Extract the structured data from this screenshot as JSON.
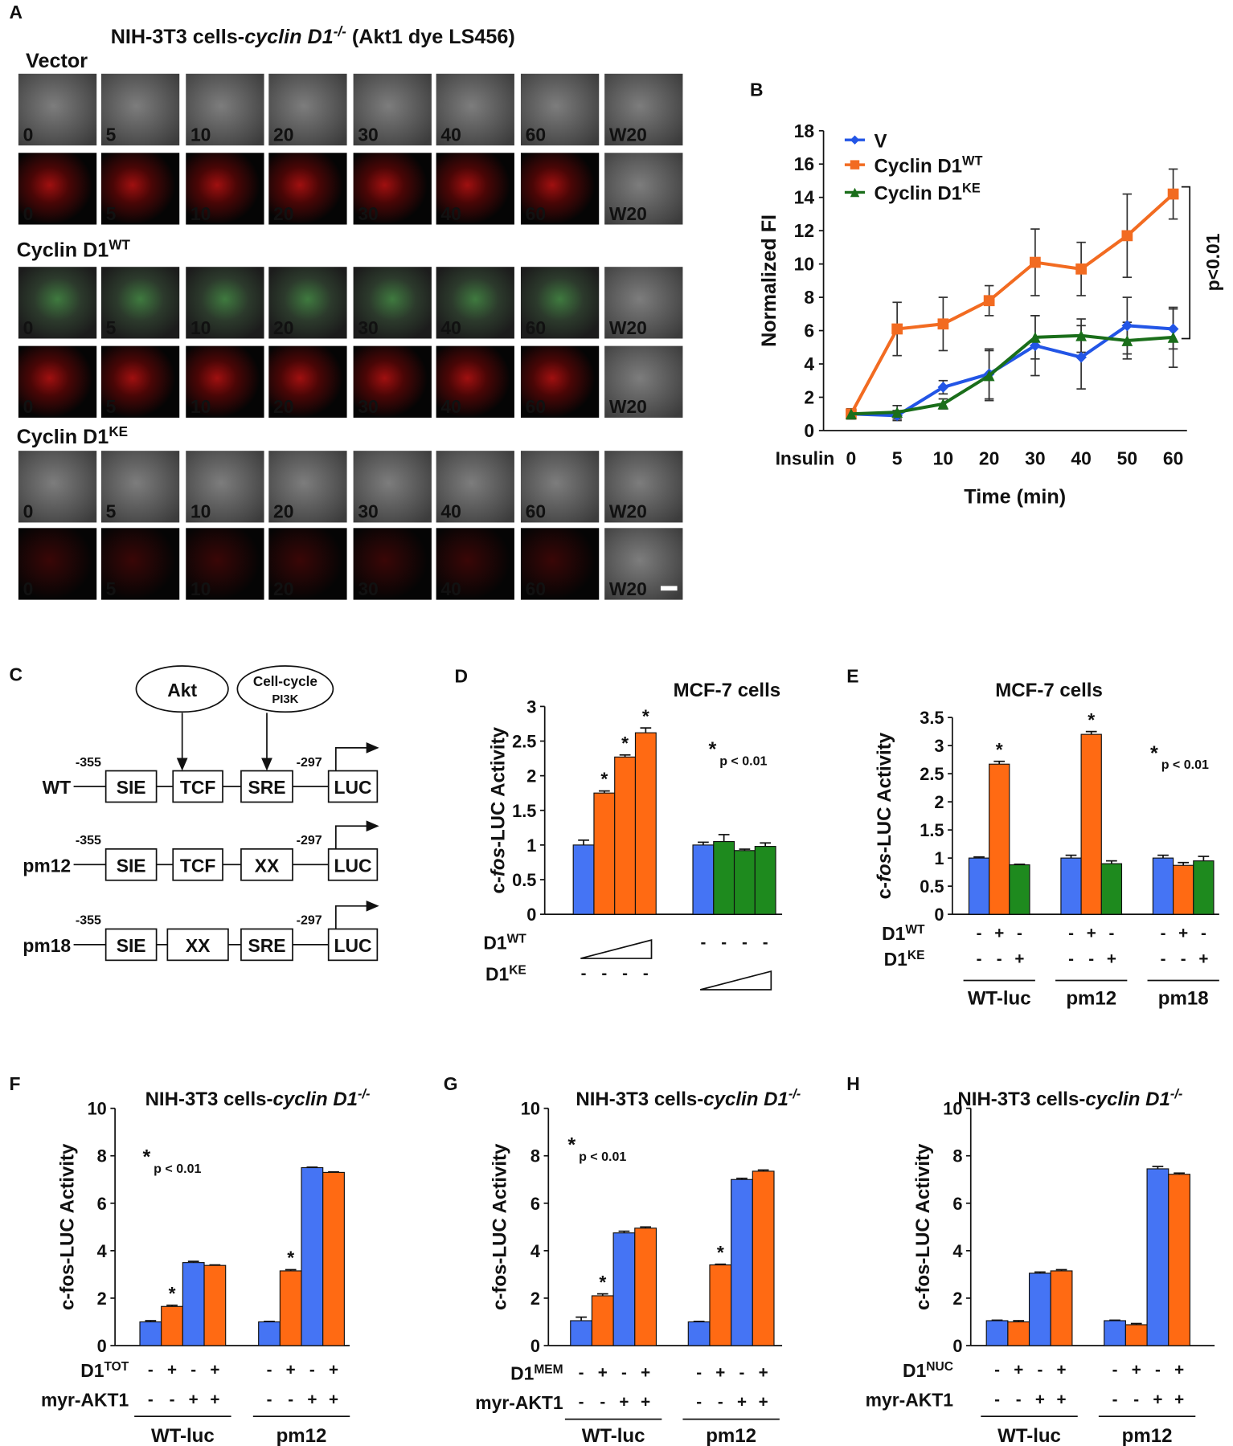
{
  "panel_a": {
    "letter": "A",
    "title_parts": [
      "NIH-3T3 cells-",
      "cyclin D1",
      "-/-",
      " (Akt1 dye LS456)"
    ],
    "groups": [
      {
        "name": "Vector"
      },
      {
        "name": "Cyclin D1",
        "name_sup": "WT"
      },
      {
        "name": "Cyclin D1",
        "name_sup": "KE"
      }
    ],
    "frames": [
      "0",
      "5",
      "10",
      "20",
      "30",
      "40",
      "60",
      "W20"
    ]
  },
  "panel_c": {
    "letter": "C",
    "regulators": [
      [
        "Akt"
      ],
      [
        "Cell-cycle",
        "PI3K"
      ]
    ],
    "constructs": [
      {
        "label": "WT",
        "start": "-355",
        "end": "-297",
        "elements": [
          "SIE",
          "TCF",
          "SRE",
          "LUC"
        ]
      },
      {
        "label": "pm12",
        "start": "-355",
        "end": "-297",
        "elements": [
          "SIE",
          "TCF",
          "XX",
          "LUC"
        ]
      },
      {
        "label": "pm18",
        "start": "-355",
        "end": "-297",
        "elements": [
          "SIE",
          "XX",
          "SRE",
          "LUC"
        ]
      }
    ]
  },
  "chart_data": [
    {
      "type": "line",
      "letter": "B",
      "ylabel": "Normalized FI",
      "xlabel": "Time (min)",
      "x_prefix": "Insulin",
      "categories": [
        "0",
        "5",
        "10",
        "20",
        "30",
        "40",
        "50",
        "60"
      ],
      "ylim": [
        0,
        18
      ],
      "yticks": [
        0,
        2,
        4,
        6,
        8,
        10,
        12,
        14,
        16,
        18
      ],
      "annotation": "p<0.01",
      "series": [
        {
          "name": "V",
          "color": "#2255e6",
          "marker": "diamond",
          "values": [
            1.0,
            0.9,
            2.6,
            3.4,
            5.1,
            4.4,
            6.3,
            6.1
          ],
          "errors": [
            0.3,
            0.3,
            0.4,
            1.5,
            1.8,
            1.9,
            1.7,
            1.2
          ]
        },
        {
          "name": "Cyclin D1",
          "name_sup": "WT",
          "color": "#f26b21",
          "marker": "square",
          "values": [
            1.0,
            6.1,
            6.4,
            7.8,
            10.1,
            9.7,
            11.7,
            14.2
          ],
          "errors": [
            0.3,
            1.6,
            1.6,
            0.9,
            2.0,
            1.6,
            2.5,
            1.5
          ]
        },
        {
          "name": "Cyclin D1",
          "name_sup": "KE",
          "color": "#1a6e1a",
          "marker": "triangle",
          "values": [
            1.0,
            1.1,
            1.6,
            3.3,
            5.6,
            5.7,
            5.4,
            5.6
          ],
          "errors": [
            0.3,
            0.4,
            0.3,
            1.5,
            1.3,
            1.0,
            1.1,
            1.8
          ]
        }
      ]
    },
    {
      "type": "bar",
      "letter": "D",
      "title_parts": [
        "MCF-7 cells"
      ],
      "ylabel_parts": [
        "c-",
        "fos",
        "-LUC Activity"
      ],
      "ylim": [
        0,
        3
      ],
      "yticks": [
        0,
        0.5,
        1,
        1.5,
        2,
        2.5,
        3
      ],
      "sig_mark": "*",
      "sig_label": "p < 0.01",
      "groups": [
        {
          "values": [
            1.0,
            1.75,
            2.27,
            2.62
          ],
          "errors": [
            0.07,
            0.03,
            0.03,
            0.07
          ],
          "colors": [
            "#4574f4",
            "#ff6a13",
            "#ff6a13",
            "#ff6a13"
          ],
          "stars": [
            false,
            true,
            true,
            true
          ]
        },
        {
          "values": [
            1.0,
            1.05,
            0.92,
            0.98
          ],
          "errors": [
            0.04,
            0.1,
            0.02,
            0.05
          ],
          "colors": [
            "#4574f4",
            "#1e8a1e",
            "#1e8a1e",
            "#1e8a1e"
          ],
          "stars": [
            false,
            false,
            false,
            false
          ]
        }
      ],
      "rows": [
        {
          "label": "D1",
          "label_sup": "WT",
          "wedge_group": 0,
          "signs": [
            null,
            [
              "-",
              "-",
              "-",
              "-"
            ]
          ]
        },
        {
          "label": "D1",
          "label_sup": "KE",
          "wedge_group": 1,
          "signs": [
            [
              "-",
              "-",
              "-",
              "-"
            ],
            null
          ]
        }
      ]
    },
    {
      "type": "bar",
      "letter": "E",
      "title_parts": [
        "MCF-7 cells"
      ],
      "ylabel_parts": [
        "c-",
        "fos",
        "-LUC Activity"
      ],
      "ylim": [
        0,
        3.5
      ],
      "yticks": [
        0,
        0.5,
        1,
        1.5,
        2,
        2.5,
        3,
        3.5
      ],
      "sig_mark": "*",
      "sig_label": "p < 0.01",
      "group_names": [
        "WT-luc",
        "pm12",
        "pm18"
      ],
      "groups": [
        {
          "values": [
            1.0,
            2.67,
            0.88
          ],
          "errors": [
            0.02,
            0.05,
            0.01
          ],
          "colors": [
            "#4574f4",
            "#ff6a13",
            "#1e8a1e"
          ],
          "stars": [
            false,
            true,
            false
          ]
        },
        {
          "values": [
            1.0,
            3.2,
            0.9
          ],
          "errors": [
            0.05,
            0.05,
            0.05
          ],
          "colors": [
            "#4574f4",
            "#ff6a13",
            "#1e8a1e"
          ],
          "stars": [
            false,
            true,
            false
          ]
        },
        {
          "values": [
            1.0,
            0.87,
            0.95
          ],
          "errors": [
            0.05,
            0.05,
            0.08
          ],
          "colors": [
            "#4574f4",
            "#ff6a13",
            "#1e8a1e"
          ],
          "stars": [
            false,
            false,
            false
          ]
        }
      ],
      "rows": [
        {
          "label": "D1",
          "label_sup": "WT",
          "signs": [
            [
              "-",
              "+",
              "-"
            ],
            [
              "-",
              "+",
              "-"
            ],
            [
              "-",
              "+",
              "-"
            ]
          ]
        },
        {
          "label": "D1",
          "label_sup": "KE",
          "signs": [
            [
              "-",
              "-",
              "+"
            ],
            [
              "-",
              "-",
              "+"
            ],
            [
              "-",
              "-",
              "+"
            ]
          ]
        }
      ]
    },
    {
      "type": "bar",
      "letter": "F",
      "title_parts": [
        "NIH-3T3 cells-",
        "cyclin D1",
        "-/-"
      ],
      "ylabel_parts": [
        "c-fos-LUC Activity"
      ],
      "ylim": [
        0,
        10
      ],
      "yticks": [
        0,
        2,
        4,
        6,
        8,
        10
      ],
      "sig_mark": "*",
      "sig_label": "p < 0.01",
      "group_names": [
        "WT-luc",
        "pm12"
      ],
      "groups": [
        {
          "values": [
            1.0,
            1.65,
            3.5,
            3.38
          ],
          "errors": [
            0.05,
            0.05,
            0.05,
            0.02
          ],
          "colors": [
            "#4574f4",
            "#ff6a13",
            "#4574f4",
            "#ff6a13"
          ],
          "stars": [
            false,
            true,
            false,
            false
          ]
        },
        {
          "values": [
            1.0,
            3.15,
            7.5,
            7.3
          ],
          "errors": [
            0.02,
            0.05,
            0.02,
            0.02
          ],
          "colors": [
            "#4574f4",
            "#ff6a13",
            "#4574f4",
            "#ff6a13"
          ],
          "stars": [
            false,
            true,
            false,
            false
          ]
        }
      ],
      "rows": [
        {
          "label": "D1",
          "label_sup": "TOT",
          "signs": [
            [
              "-",
              "+",
              "-",
              "+"
            ],
            [
              "-",
              "+",
              "-",
              "+"
            ]
          ]
        },
        {
          "label": "myr-AKT1",
          "signs": [
            [
              "-",
              "-",
              "+",
              "+"
            ],
            [
              "-",
              "-",
              "+",
              "+"
            ]
          ]
        }
      ]
    },
    {
      "type": "bar",
      "letter": "G",
      "title_parts": [
        "NIH-3T3 cells-",
        "cyclin D1",
        "-/-"
      ],
      "ylabel_parts": [
        "c-fos-LUC Activity"
      ],
      "ylim": [
        0,
        10
      ],
      "yticks": [
        0,
        2,
        4,
        6,
        8,
        10
      ],
      "sig_mark": "*",
      "sig_label": "p < 0.01",
      "group_names": [
        "WT-luc",
        "pm12"
      ],
      "groups": [
        {
          "values": [
            1.05,
            2.1,
            4.75,
            4.95
          ],
          "errors": [
            0.15,
            0.08,
            0.07,
            0.05
          ],
          "colors": [
            "#4574f4",
            "#ff6a13",
            "#4574f4",
            "#ff6a13"
          ],
          "stars": [
            false,
            true,
            false,
            false
          ]
        },
        {
          "values": [
            1.0,
            3.4,
            7.0,
            7.35
          ],
          "errors": [
            0.02,
            0.03,
            0.05,
            0.05
          ],
          "colors": [
            "#4574f4",
            "#ff6a13",
            "#4574f4",
            "#ff6a13"
          ],
          "stars": [
            false,
            true,
            false,
            false
          ]
        }
      ],
      "rows": [
        {
          "label": "D1",
          "label_sup": "MEM",
          "signs": [
            [
              "-",
              "+",
              "-",
              "+"
            ],
            [
              "-",
              "+",
              "-",
              "+"
            ]
          ]
        },
        {
          "label": "myr-AKT1",
          "signs": [
            [
              "-",
              "-",
              "+",
              "+"
            ],
            [
              "-",
              "-",
              "+",
              "+"
            ]
          ]
        }
      ]
    },
    {
      "type": "bar",
      "letter": "H",
      "title_parts": [
        "NIH-3T3 cells-",
        "cyclin D1",
        "-/-"
      ],
      "ylabel_parts": [
        "c-fos-LUC Activity"
      ],
      "ylim": [
        0,
        10
      ],
      "yticks": [
        0,
        2,
        4,
        6,
        8,
        10
      ],
      "group_names": [
        "WT-luc",
        "pm12"
      ],
      "groups": [
        {
          "values": [
            1.05,
            1.0,
            3.05,
            3.15
          ],
          "errors": [
            0.02,
            0.05,
            0.05,
            0.05
          ],
          "colors": [
            "#4574f4",
            "#ff6a13",
            "#4574f4",
            "#ff6a13"
          ]
        },
        {
          "values": [
            1.05,
            0.88,
            7.45,
            7.22
          ],
          "errors": [
            0.02,
            0.05,
            0.1,
            0.05
          ],
          "colors": [
            "#4574f4",
            "#ff6a13",
            "#4574f4",
            "#ff6a13"
          ]
        }
      ],
      "rows": [
        {
          "label": "D1",
          "label_sup": "NUC",
          "signs": [
            [
              "-",
              "+",
              "-",
              "+"
            ],
            [
              "-",
              "+",
              "-",
              "+"
            ]
          ]
        },
        {
          "label": "myr-AKT1",
          "signs": [
            [
              "-",
              "-",
              "+",
              "+"
            ],
            [
              "-",
              "-",
              "+",
              "+"
            ]
          ]
        }
      ]
    }
  ]
}
